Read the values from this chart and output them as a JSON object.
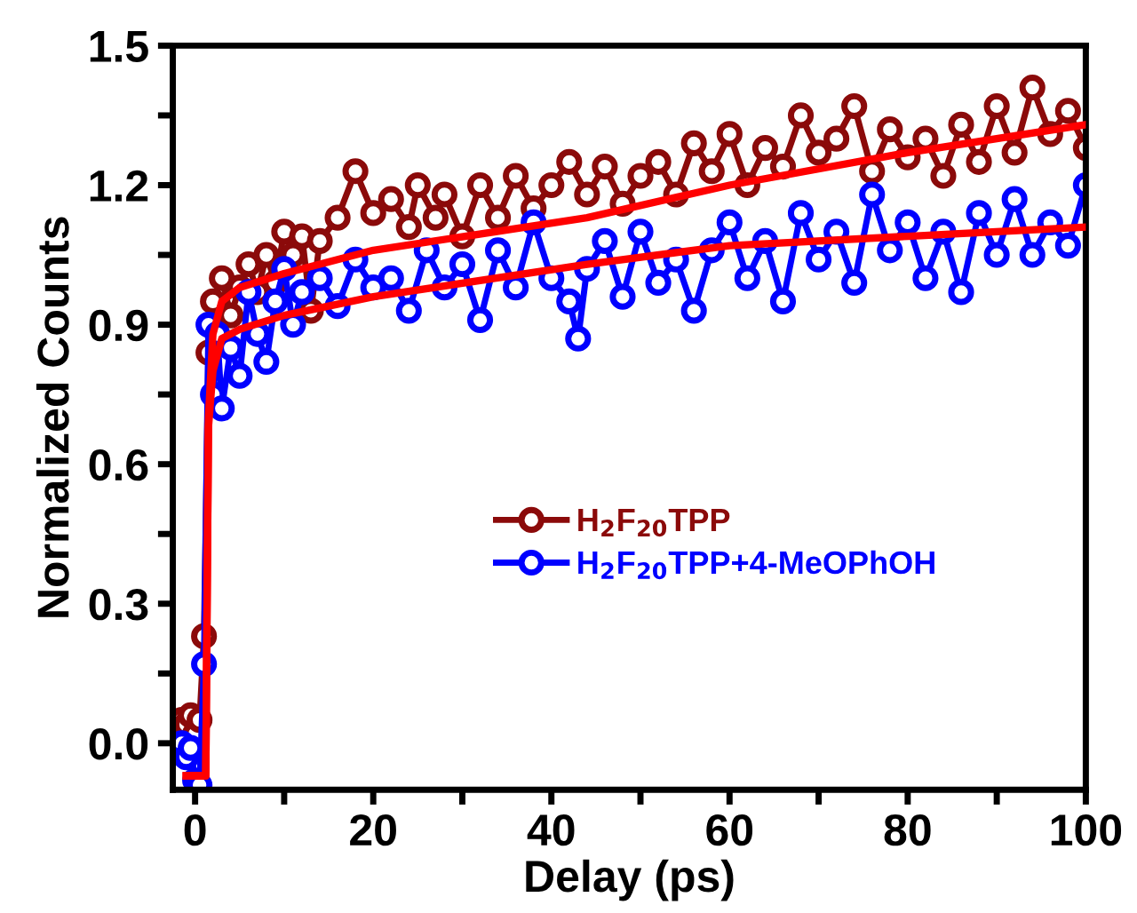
{
  "chart_data": {
    "type": "line",
    "xlabel": "Delay (ps)",
    "ylabel": "Normalized Counts",
    "xlim": [
      -2.5,
      100
    ],
    "ylim": [
      -0.1,
      1.5
    ],
    "xticks": [
      0,
      {
        "value": 10,
        "label": null
      },
      20,
      {
        "value": 30,
        "label": null
      },
      40,
      {
        "value": 50,
        "label": null
      },
      60,
      {
        "value": 70,
        "label": null
      },
      80,
      {
        "value": 90,
        "label": null
      },
      100
    ],
    "yticks": [
      "0.0",
      {
        "value": 0.15,
        "label": null
      },
      {
        "value": 0.3,
        "label": "0.3"
      },
      {
        "value": 0.45,
        "label": null
      },
      {
        "value": 0.6,
        "label": "0.6"
      },
      {
        "value": 0.75,
        "label": null
      },
      {
        "value": 0.9,
        "label": "0.9"
      },
      {
        "value": 1.05,
        "label": null
      },
      {
        "value": 1.2,
        "label": "1.2"
      },
      {
        "value": 1.35,
        "label": null
      },
      {
        "value": 1.5,
        "label": "1.5"
      }
    ],
    "grid": false,
    "legend": "center",
    "series": [
      {
        "name": "H$_{2}$F$_{20}$TPP",
        "color": "#8b0a0a",
        "marker": "circle",
        "x": [
          -2,
          -1.5,
          -1,
          -0.5,
          0,
          0.5,
          1,
          1.5,
          2,
          3,
          4,
          5,
          6,
          7,
          8,
          9,
          10,
          11,
          12,
          13,
          14,
          16,
          18,
          20,
          22,
          24,
          25,
          27,
          28,
          30,
          32,
          34,
          36,
          38,
          40,
          42,
          44,
          46,
          48,
          50,
          52,
          54,
          56,
          58,
          60,
          62,
          64,
          66,
          68,
          70,
          72,
          74,
          76,
          78,
          80,
          82,
          84,
          86,
          88,
          90,
          92,
          94,
          96,
          98,
          100
        ],
        "values": [
          0.03,
          0.05,
          0.04,
          0.06,
          0.02,
          0.05,
          0.23,
          0.84,
          0.95,
          1.0,
          0.92,
          0.98,
          1.03,
          0.97,
          1.05,
          0.99,
          1.1,
          1.05,
          1.09,
          0.93,
          1.08,
          1.13,
          1.23,
          1.14,
          1.17,
          1.11,
          1.2,
          1.13,
          1.18,
          1.09,
          1.2,
          1.13,
          1.22,
          1.15,
          1.2,
          1.25,
          1.18,
          1.24,
          1.16,
          1.22,
          1.25,
          1.18,
          1.29,
          1.23,
          1.31,
          1.2,
          1.28,
          1.24,
          1.35,
          1.27,
          1.3,
          1.37,
          1.23,
          1.32,
          1.26,
          1.3,
          1.22,
          1.33,
          1.25,
          1.37,
          1.27,
          1.41,
          1.31,
          1.36,
          1.28
        ]
      },
      {
        "name": "H$_{2}$F$_{20}$TPP+4-MeOPhOH",
        "color": "#0000ff",
        "marker": "circle",
        "x": [
          -2,
          -1.5,
          -1,
          -0.5,
          0,
          0.5,
          1,
          1.5,
          2,
          2.5,
          3,
          4,
          5,
          6,
          7,
          8,
          9,
          10,
          11,
          12,
          14,
          16,
          18,
          20,
          22,
          24,
          26,
          28,
          30,
          32,
          34,
          36,
          38,
          40,
          42,
          43,
          44,
          46,
          48,
          50,
          52,
          54,
          56,
          58,
          60,
          62,
          64,
          66,
          68,
          70,
          72,
          74,
          76,
          78,
          80,
          82,
          84,
          86,
          88,
          90,
          92,
          94,
          96,
          98,
          100
        ],
        "values": [
          -0.02,
          0.0,
          -0.03,
          -0.01,
          -0.08,
          -0.09,
          0.17,
          0.9,
          0.75,
          0.88,
          0.72,
          0.85,
          0.79,
          0.97,
          0.88,
          0.82,
          0.95,
          1.02,
          0.9,
          0.97,
          1.0,
          0.94,
          1.04,
          0.98,
          1.0,
          0.93,
          1.06,
          0.98,
          1.03,
          0.91,
          1.06,
          0.98,
          1.12,
          1.0,
          0.95,
          0.87,
          1.02,
          1.08,
          0.96,
          1.1,
          0.99,
          1.04,
          0.93,
          1.06,
          1.12,
          1.0,
          1.08,
          0.95,
          1.14,
          1.04,
          1.1,
          0.99,
          1.18,
          1.06,
          1.12,
          1.0,
          1.1,
          0.97,
          1.14,
          1.05,
          1.17,
          1.05,
          1.12,
          1.07,
          1.2
        ]
      },
      {
        "color": "#ff0000",
        "marker": "none",
        "x": [
          -1,
          1.2,
          1.5,
          2,
          3,
          5,
          10,
          20,
          44,
          60,
          80,
          100
        ],
        "values": [
          -0.07,
          -0.07,
          0.7,
          0.88,
          0.95,
          0.98,
          1.01,
          1.06,
          1.13,
          1.2,
          1.27,
          1.33
        ]
      },
      {
        "color": "#ff0000",
        "marker": "none",
        "x": [
          -1,
          1.2,
          1.5,
          2,
          3,
          5,
          10,
          20,
          44,
          60,
          80,
          100
        ],
        "values": [
          -0.07,
          -0.07,
          0.68,
          0.8,
          0.87,
          0.89,
          0.92,
          0.96,
          1.03,
          1.07,
          1.09,
          1.11
        ]
      }
    ]
  }
}
